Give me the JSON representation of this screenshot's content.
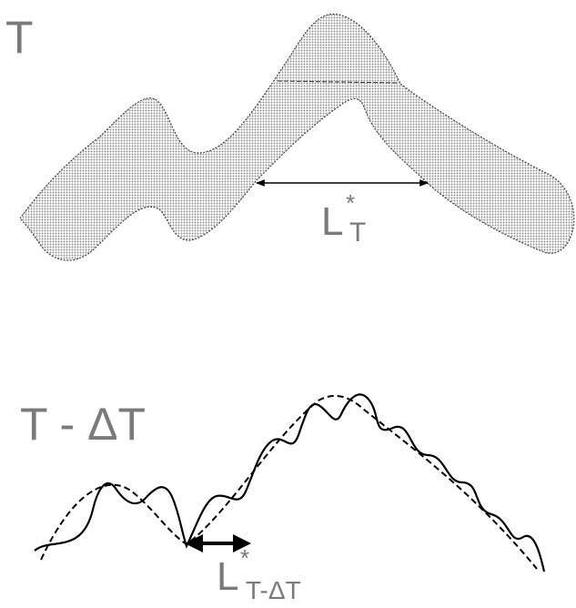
{
  "top_panel": {
    "title": "T",
    "length_label": {
      "main": "L",
      "superscript": "*",
      "subscript": "T"
    }
  },
  "bottom_panel": {
    "title": "T - ΔT",
    "length_label": {
      "main": "L",
      "superscript": "*",
      "subscript": "T-ΔT"
    }
  },
  "colors": {
    "label": "#7a7a7a",
    "stroke": "#000000",
    "fill_dots": "#9a9a9a"
  }
}
